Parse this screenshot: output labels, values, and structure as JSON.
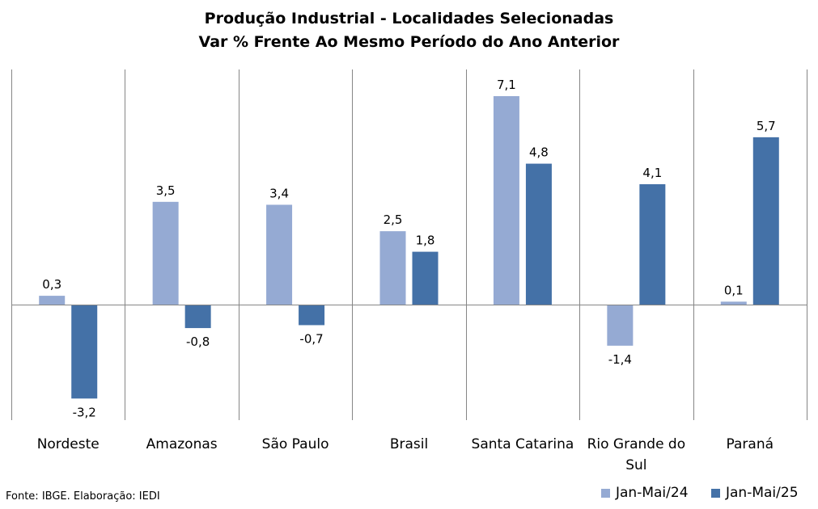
{
  "chart_data": {
    "type": "bar",
    "title": "Produção Industrial - Localidades Selecionadas",
    "subtitle": "Var % Frente Ao Mesmo Período do Ano Anterior",
    "categories": [
      "Nordeste",
      "Amazonas",
      "São Paulo",
      "Brasil",
      "Santa Catarina",
      "Rio Grande do Sul",
      "Paraná"
    ],
    "series": [
      {
        "name": "Jan-Mai/24",
        "values": [
          0.3,
          3.5,
          3.4,
          2.5,
          7.1,
          -1.4,
          0.1
        ],
        "labels": [
          "0,3",
          "3,5",
          "3,4",
          "2,5",
          "7,1",
          "-1,4",
          "0,1"
        ],
        "color": "#95aad3"
      },
      {
        "name": "Jan-Mai/25",
        "values": [
          -3.2,
          -0.8,
          -0.7,
          1.8,
          4.8,
          4.1,
          5.7
        ],
        "labels": [
          "-3,2",
          "-0,8",
          "-0,7",
          "1,8",
          "4,8",
          "4,1",
          "5,7"
        ],
        "color": "#4471a7"
      }
    ],
    "ylim": [
      -4.1,
      8.1
    ],
    "grid": false,
    "legend": "bottom-right"
  },
  "source": "Fonte: IBGE. Elaboração: IEDI"
}
